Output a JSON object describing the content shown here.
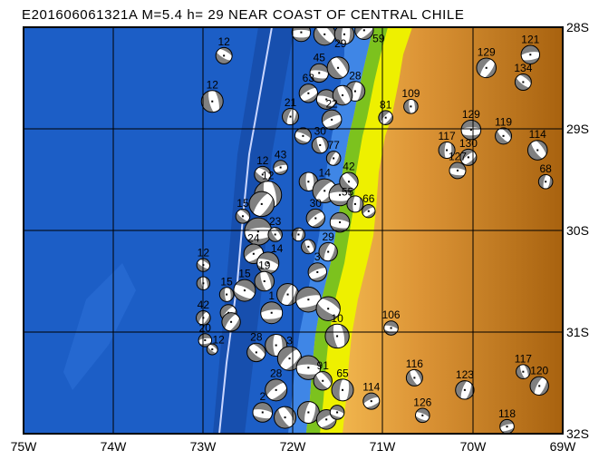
{
  "title": "E201606061321A M=5.4 h= 29 NEAR COAST OF CENTRAL CHILE",
  "map": {
    "lon_range": [
      -75,
      -69
    ],
    "lat_range": [
      -32,
      -28
    ],
    "lon_labels": [
      "75W",
      "74W",
      "73W",
      "72W",
      "71W",
      "70W",
      "69W"
    ],
    "lat_labels": [
      "28S",
      "29S",
      "30S",
      "31S",
      "32S"
    ],
    "colors": {
      "ocean": "#1c5ec6",
      "ocean_deep": "#174fae",
      "shelf": "#3f86e6",
      "trench": "#c9d6ff",
      "coast_green": "#7cc21e",
      "coast_yellow": "#eef000",
      "land": "#e39a3a",
      "land_high": "#a8620f",
      "ball_compression": "#808080",
      "ball_dilatation": "#ffffff"
    }
  },
  "events": [
    {
      "lon": -72.77,
      "lat": -28.28,
      "depth": "12",
      "mag": 5.5
    },
    {
      "lon": -72.9,
      "lat": -28.73,
      "depth": "12",
      "mag": 6.0
    },
    {
      "lon": -69.85,
      "lat": -28.4,
      "depth": "129",
      "mag": 5.8
    },
    {
      "lon": -69.36,
      "lat": -28.27,
      "depth": "121",
      "mag": 5.7
    },
    {
      "lon": -69.44,
      "lat": -28.54,
      "depth": "134",
      "mag": 5.5
    },
    {
      "lon": -70.69,
      "lat": -28.78,
      "depth": "109",
      "mag": 5.3
    },
    {
      "lon": -70.97,
      "lat": -28.89,
      "depth": "81",
      "mag": 5.3
    },
    {
      "lon": -70.02,
      "lat": -29.01,
      "depth": "129",
      "mag": 5.8
    },
    {
      "lon": -69.66,
      "lat": -29.07,
      "depth": "119",
      "mag": 5.5
    },
    {
      "lon": -70.29,
      "lat": -29.21,
      "depth": "117",
      "mag": 5.5
    },
    {
      "lon": -70.05,
      "lat": -29.28,
      "depth": "130",
      "mag": 5.5
    },
    {
      "lon": -70.17,
      "lat": -29.41,
      "depth": "127",
      "mag": 5.5
    },
    {
      "lon": -69.28,
      "lat": -29.21,
      "depth": "114",
      "mag": 5.8
    },
    {
      "lon": -69.19,
      "lat": -29.52,
      "depth": "68",
      "mag": 5.3
    },
    {
      "lon": -71.16,
      "lat": -29.81,
      "depth": "66",
      "mag": 5.2
    },
    {
      "lon": -70.91,
      "lat": -30.96,
      "depth": "106",
      "mag": 5.3
    },
    {
      "lon": -70.65,
      "lat": -31.45,
      "depth": "116",
      "mag": 5.5
    },
    {
      "lon": -70.09,
      "lat": -31.57,
      "depth": "123",
      "mag": 5.7
    },
    {
      "lon": -71.13,
      "lat": -31.68,
      "depth": "114",
      "mag": 5.5
    },
    {
      "lon": -70.56,
      "lat": -31.82,
      "depth": "126",
      "mag": 5.3
    },
    {
      "lon": -69.44,
      "lat": -31.39,
      "depth": "117",
      "mag": 5.3
    },
    {
      "lon": -69.26,
      "lat": -31.53,
      "depth": "120",
      "mag": 5.7
    },
    {
      "lon": -69.62,
      "lat": -31.93,
      "depth": "118",
      "mag": 5.3
    },
    {
      "lon": -73.0,
      "lat": -30.34,
      "depth": "12",
      "mag": 5.2
    },
    {
      "lon": -73.0,
      "lat": -30.52,
      "depth": "",
      "mag": 5.2
    },
    {
      "lon": -73.0,
      "lat": -30.86,
      "depth": "42",
      "mag": 5.3
    },
    {
      "lon": -72.98,
      "lat": -31.08,
      "depth": "20",
      "mag": 5.2
    },
    {
      "lon": -72.9,
      "lat": -31.17,
      "depth": "12",
      "mag": 5.0
    },
    {
      "lon": -72.74,
      "lat": -30.63,
      "depth": "15",
      "mag": 5.3
    },
    {
      "lon": -72.72,
      "lat": -30.81,
      "depth": "",
      "mag": 5.5
    },
    {
      "lon": -71.91,
      "lat": -28.05,
      "depth": "",
      "mag": 5.7
    },
    {
      "lon": -71.65,
      "lat": -28.07,
      "depth": "29",
      "mag": 6.0
    },
    {
      "lon": -71.43,
      "lat": -28.07,
      "depth": "",
      "mag": 5.8
    },
    {
      "lon": -71.21,
      "lat": -28.03,
      "depth": "59",
      "mag": 5.7
    },
    {
      "lon": -71.71,
      "lat": -28.45,
      "depth": "45",
      "mag": 5.7
    },
    {
      "lon": -71.5,
      "lat": -28.4,
      "depth": "",
      "mag": 6.0
    },
    {
      "lon": -71.31,
      "lat": -28.63,
      "depth": "28",
      "mag": 5.8
    },
    {
      "lon": -71.83,
      "lat": -28.65,
      "depth": "63",
      "mag": 5.7
    },
    {
      "lon": -71.63,
      "lat": -28.71,
      "depth": "",
      "mag": 5.8
    },
    {
      "lon": -71.45,
      "lat": -28.67,
      "depth": "",
      "mag": 5.8
    },
    {
      "lon": -72.03,
      "lat": -28.88,
      "depth": "21",
      "mag": 5.5
    },
    {
      "lon": -71.57,
      "lat": -28.91,
      "depth": "22",
      "mag": 5.8
    },
    {
      "lon": -71.89,
      "lat": -29.07,
      "depth": "",
      "mag": 5.5
    },
    {
      "lon": -71.7,
      "lat": -29.16,
      "depth": "30",
      "mag": 5.5
    },
    {
      "lon": -71.55,
      "lat": -29.29,
      "depth": "77",
      "mag": 5.3
    },
    {
      "lon": -72.14,
      "lat": -29.38,
      "depth": "43",
      "mag": 5.3
    },
    {
      "lon": -72.34,
      "lat": -29.45,
      "depth": "12",
      "mag": 5.5
    },
    {
      "lon": -72.28,
      "lat": -29.65,
      "depth": "12",
      "mag": 6.5
    },
    {
      "lon": -72.35,
      "lat": -29.74,
      "depth": "",
      "mag": 6.3
    },
    {
      "lon": -72.39,
      "lat": -30.01,
      "depth": "",
      "mag": 6.5
    },
    {
      "lon": -72.56,
      "lat": -29.86,
      "depth": "15",
      "mag": 5.3
    },
    {
      "lon": -71.83,
      "lat": -29.52,
      "depth": "",
      "mag": 5.7
    },
    {
      "lon": -71.65,
      "lat": -29.61,
      "depth": "14",
      "mag": 6.2
    },
    {
      "lon": -71.48,
      "lat": -29.65,
      "depth": "",
      "mag": 6.0
    },
    {
      "lon": -71.38,
      "lat": -29.52,
      "depth": "42",
      "mag": 5.7
    },
    {
      "lon": -71.31,
      "lat": -29.74,
      "depth": "55",
      "mag": 5.5
    },
    {
      "lon": -71.75,
      "lat": -29.88,
      "depth": "30",
      "mag": 5.7
    },
    {
      "lon": -71.48,
      "lat": -29.92,
      "depth": "",
      "mag": 5.8
    },
    {
      "lon": -72.2,
      "lat": -30.04,
      "depth": "23",
      "mag": 5.3
    },
    {
      "lon": -71.94,
      "lat": -30.04,
      "depth": "",
      "mag": 5.2
    },
    {
      "lon": -72.44,
      "lat": -30.23,
      "depth": "24",
      "mag": 5.8
    },
    {
      "lon": -72.28,
      "lat": -30.32,
      "depth": "14",
      "mag": 6.0
    },
    {
      "lon": -71.83,
      "lat": -30.16,
      "depth": "",
      "mag": 5.3
    },
    {
      "lon": -71.61,
      "lat": -30.21,
      "depth": "29",
      "mag": 5.7
    },
    {
      "lon": -71.73,
      "lat": -30.41,
      "depth": "3",
      "mag": 5.7
    },
    {
      "lon": -72.54,
      "lat": -30.59,
      "depth": "15",
      "mag": 6.0
    },
    {
      "lon": -72.32,
      "lat": -30.5,
      "depth": "19",
      "mag": 5.8
    },
    {
      "lon": -72.06,
      "lat": -30.63,
      "depth": "",
      "mag": 6.0
    },
    {
      "lon": -71.83,
      "lat": -30.68,
      "depth": "",
      "mag": 6.3
    },
    {
      "lon": -71.61,
      "lat": -30.77,
      "depth": "",
      "mag": 6.2
    },
    {
      "lon": -71.51,
      "lat": -31.04,
      "depth": "10",
      "mag": 6.2
    },
    {
      "lon": -72.69,
      "lat": -30.9,
      "depth": "",
      "mag": 5.7
    },
    {
      "lon": -72.24,
      "lat": -30.81,
      "depth": "1",
      "mag": 6.0
    },
    {
      "lon": -72.41,
      "lat": -31.2,
      "depth": "28",
      "mag": 5.7
    },
    {
      "lon": -72.19,
      "lat": -31.13,
      "depth": "",
      "mag": 6.0
    },
    {
      "lon": -72.04,
      "lat": -31.26,
      "depth": "3",
      "mag": 6.2
    },
    {
      "lon": -71.83,
      "lat": -31.35,
      "depth": "",
      "mag": 6.2
    },
    {
      "lon": -71.67,
      "lat": -31.48,
      "depth": "91",
      "mag": 5.7
    },
    {
      "lon": -71.45,
      "lat": -31.57,
      "depth": "65",
      "mag": 6.0
    },
    {
      "lon": -72.19,
      "lat": -31.57,
      "depth": "28",
      "mag": 6.0
    },
    {
      "lon": -72.34,
      "lat": -31.79,
      "depth": "2",
      "mag": 5.8
    },
    {
      "lon": -72.09,
      "lat": -31.84,
      "depth": "",
      "mag": 6.0
    },
    {
      "lon": -71.83,
      "lat": -31.79,
      "depth": "",
      "mag": 6.0
    },
    {
      "lon": -71.63,
      "lat": -31.86,
      "depth": "",
      "mag": 5.8
    },
    {
      "lon": -71.51,
      "lat": -31.79,
      "depth": "",
      "mag": 5.3
    }
  ]
}
